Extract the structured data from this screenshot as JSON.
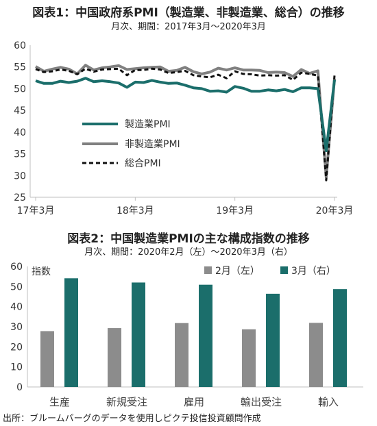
{
  "chart_data": [
    {
      "type": "line",
      "title": "図表1：中国政府系PMI（製造業、非製造業、総合）の推移",
      "subtitle": "月次、期間：2017年3月～2020年3月",
      "ylim": [
        25,
        60
      ],
      "yticks": [
        "25",
        "30",
        "35",
        "40",
        "45",
        "50",
        "55",
        "60"
      ],
      "xtick_labels": [
        "17年3月",
        "18年3月",
        "19年3月",
        "20年3月"
      ],
      "x": [
        "2017-03",
        "2017-04",
        "2017-05",
        "2017-06",
        "2017-07",
        "2017-08",
        "2017-09",
        "2017-10",
        "2017-11",
        "2017-12",
        "2018-01",
        "2018-02",
        "2018-03",
        "2018-04",
        "2018-05",
        "2018-06",
        "2018-07",
        "2018-08",
        "2018-09",
        "2018-10",
        "2018-11",
        "2018-12",
        "2019-01",
        "2019-02",
        "2019-03",
        "2019-04",
        "2019-05",
        "2019-06",
        "2019-07",
        "2019-08",
        "2019-09",
        "2019-10",
        "2019-11",
        "2019-12",
        "2020-01",
        "2020-02",
        "2020-03"
      ],
      "series": [
        {
          "name": "製造業PMI",
          "color": "#1b6e6b",
          "style": "solid",
          "values": [
            51.8,
            51.2,
            51.2,
            51.7,
            51.4,
            51.7,
            52.4,
            51.6,
            51.8,
            51.6,
            51.3,
            50.3,
            51.5,
            51.4,
            51.9,
            51.5,
            51.2,
            51.3,
            50.8,
            50.2,
            50.0,
            49.4,
            49.5,
            49.2,
            50.5,
            50.1,
            49.4,
            49.4,
            49.7,
            49.5,
            49.8,
            49.3,
            50.2,
            50.2,
            50.0,
            35.7,
            52.0
          ]
        },
        {
          "name": "非製造業PMI",
          "color": "#808080",
          "style": "solid",
          "values": [
            55.1,
            54.0,
            54.5,
            54.9,
            54.5,
            53.4,
            55.4,
            54.3,
            54.8,
            55.0,
            55.3,
            54.4,
            54.6,
            54.8,
            54.9,
            55.0,
            54.0,
            54.2,
            54.9,
            53.9,
            53.4,
            53.8,
            54.7,
            54.3,
            54.8,
            54.3,
            54.3,
            54.2,
            53.7,
            53.8,
            53.7,
            52.8,
            54.4,
            53.5,
            54.1,
            29.6,
            52.3
          ]
        },
        {
          "name": "総合PMI",
          "color": "#111111",
          "style": "dashed",
          "values": [
            54.5,
            53.8,
            54.0,
            54.4,
            54.1,
            53.3,
            54.6,
            53.9,
            54.4,
            54.5,
            54.6,
            53.1,
            54.3,
            54.3,
            54.6,
            54.4,
            53.6,
            53.8,
            54.1,
            53.1,
            52.8,
            52.6,
            53.2,
            52.4,
            54.0,
            53.4,
            53.3,
            53.0,
            53.1,
            53.0,
            53.1,
            52.0,
            53.7,
            53.4,
            53.0,
            28.9,
            53.0
          ]
        }
      ],
      "legend": "inside-left"
    },
    {
      "type": "bar",
      "title": "図表2：中国製造業PMIの主な構成指数の推移",
      "subtitle": "月次、期間：2020年2月（左）～2020年3月（右）",
      "ylabel": "指数",
      "ylim": [
        0,
        60
      ],
      "yticks": [
        "0",
        "10",
        "20",
        "30",
        "40",
        "50",
        "60"
      ],
      "categories": [
        "生産",
        "新規受注",
        "雇用",
        "輸出受注",
        "輸入"
      ],
      "series": [
        {
          "name": "2月（左）",
          "color": "#8c8c8c",
          "values": [
            27.8,
            29.3,
            31.8,
            28.7,
            31.9
          ]
        },
        {
          "name": "3月（右）",
          "color": "#1b6e6b",
          "values": [
            54.1,
            52.0,
            50.9,
            46.4,
            48.7
          ]
        }
      ],
      "legend": "top-right"
    }
  ],
  "source": "出所：ブルームバーグのデータを使用しピクテ投信投資顧問作成"
}
